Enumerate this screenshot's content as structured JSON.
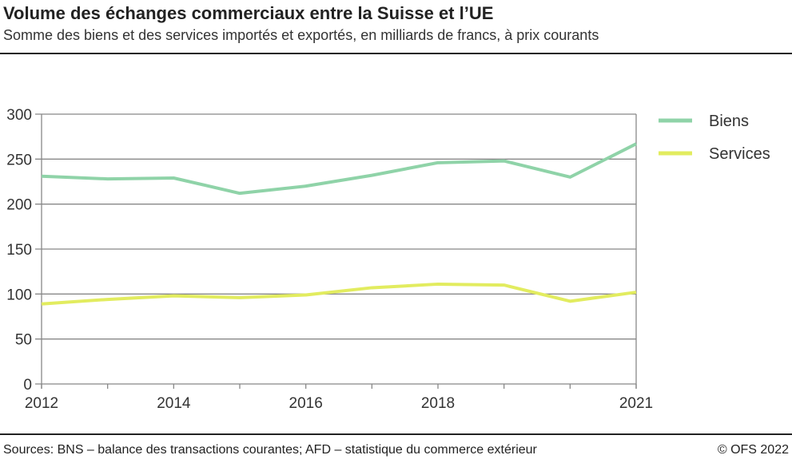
{
  "title": "Volume des échanges commerciaux entre la Suisse et l’UE",
  "subtitle": "Somme des biens et des services importés et exportés, en milliards de francs, à prix courants",
  "source": "Sources: BNS – balance des transactions courantes; AFD – statistique du commerce extérieur",
  "copyright": "© OFS 2022",
  "chart_data": {
    "type": "line",
    "x": [
      2012,
      2013,
      2014,
      2015,
      2016,
      2017,
      2018,
      2019,
      2020,
      2021
    ],
    "xticks": [
      "2012",
      "2014",
      "2016",
      "2018",
      "2021"
    ],
    "yticks": [
      "0",
      "50",
      "100",
      "150",
      "200",
      "250",
      "300"
    ],
    "ylim": [
      0,
      300
    ],
    "grid": true,
    "legend": "right",
    "series": [
      {
        "name": "Biens",
        "color": "#8fd3a8",
        "values": [
          231,
          228,
          229,
          212,
          220,
          232,
          246,
          248,
          230,
          267
        ]
      },
      {
        "name": "Services",
        "color": "#e2ec5f",
        "values": [
          89,
          94,
          98,
          96,
          99,
          107,
          111,
          110,
          92,
          102
        ]
      }
    ]
  }
}
